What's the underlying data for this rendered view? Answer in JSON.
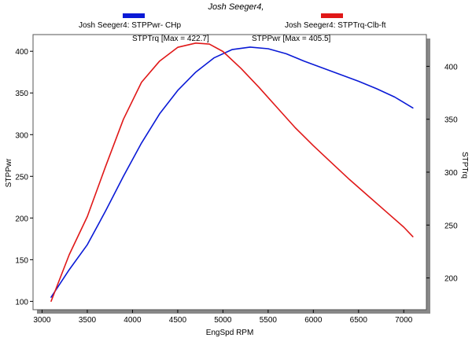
{
  "title": "Josh Seeger4,",
  "legend": [
    {
      "label": "Josh Seeger4: STPPwr- CHp",
      "color": "#0a1ad6"
    },
    {
      "label": "Josh Seeger4: STPTrq-Clb-ft",
      "color": "#e01818"
    }
  ],
  "annotations": {
    "torque_max": "STPTrq [Max = 422.7]",
    "power_max": "STPPwr [Max = 405.5]"
  },
  "chart_data": {
    "type": "line",
    "title": "Josh Seeger4,",
    "xlabel": "EngSpd  RPM",
    "ylabel": "STPPwr",
    "y2label": "STPTrq",
    "xlim": [
      2900,
      7250
    ],
    "ylim": [
      90,
      420
    ],
    "y2lim": [
      170,
      430
    ],
    "xticks": [
      3000,
      3500,
      4000,
      4500,
      5000,
      5500,
      6000,
      6500,
      7000
    ],
    "yticks": [
      100,
      150,
      200,
      250,
      300,
      350,
      400
    ],
    "y2ticks": [
      200,
      250,
      300,
      350,
      400
    ],
    "grid": false,
    "legend_position": "top",
    "series": [
      {
        "name": "Josh Seeger4: STPPwr- CHp",
        "axis": "left",
        "color": "#0a1ad6",
        "x": [
          3100,
          3300,
          3500,
          3700,
          3900,
          4100,
          4300,
          4500,
          4700,
          4900,
          5100,
          5300,
          5500,
          5700,
          5900,
          6100,
          6300,
          6500,
          6700,
          6900,
          7100
        ],
        "y": [
          105,
          138,
          168,
          208,
          250,
          290,
          325,
          353,
          375,
          392,
          402,
          405,
          403,
          397,
          388,
          380,
          372,
          364,
          355,
          345,
          332
        ]
      },
      {
        "name": "Josh Seeger4: STPTrq-Clb-ft",
        "axis": "right",
        "color": "#e01818",
        "x": [
          3100,
          3300,
          3500,
          3700,
          3900,
          4100,
          4300,
          4500,
          4700,
          4850,
          5000,
          5200,
          5400,
          5600,
          5800,
          6000,
          6200,
          6400,
          6600,
          6800,
          7000,
          7100
        ],
        "y": [
          178,
          222,
          258,
          305,
          350,
          385,
          405,
          418,
          422,
          421,
          414,
          398,
          380,
          361,
          342,
          325,
          309,
          293,
          278,
          263,
          248,
          239
        ]
      }
    ]
  }
}
